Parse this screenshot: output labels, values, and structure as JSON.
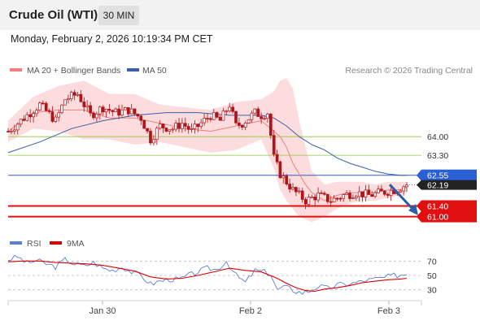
{
  "header": {
    "title": "Crude Oil (WTI)",
    "timeframe": "30 MIN",
    "datetime": "Monday, February 2, 2026 10:19:34 PM CET"
  },
  "attribution": "Research © 2026 Trading Central",
  "colors": {
    "ma20": "#f08080",
    "bollinger_fill": "#fcd6d6",
    "ma50": "#3a5fa8",
    "support_resistance_green": "#8ec63f",
    "pivot_blue": "#2a5fd6",
    "support_red": "#e01010",
    "candle": "#b0141a",
    "rsi": "#5a7fd6",
    "rsi_ma": "#e00000"
  },
  "chart_data": [
    {
      "type": "candlestick",
      "instrument": "Crude Oil (WTI)",
      "interval": "30 MIN",
      "legend": [
        {
          "label": "MA 20 + Bollinger Bands",
          "color": "#f08080"
        },
        {
          "label": "MA 50",
          "color": "#3a5fa8"
        }
      ],
      "x_ticks": [
        "Jan 30",
        "Feb 2",
        "Feb 3"
      ],
      "ylim": [
        60.5,
        66.2
      ],
      "levels": [
        {
          "value": 64.0,
          "label": "64.00",
          "style": "green"
        },
        {
          "value": 63.3,
          "label": "63.30",
          "style": "green"
        },
        {
          "value": 62.55,
          "label": "62.55",
          "style": "blue"
        },
        {
          "value": 61.4,
          "label": "61.40",
          "style": "red"
        },
        {
          "value": 61.0,
          "label": "61.00",
          "style": "red"
        }
      ],
      "last_price": {
        "value": 62.19,
        "label": "62.19"
      },
      "forecast_arrow": {
        "from": 62.2,
        "to": 61.05
      },
      "price_path": [
        [
          0,
          64.2
        ],
        [
          6,
          64.8
        ],
        [
          10,
          65.2
        ],
        [
          15,
          64.6
        ],
        [
          18,
          65.4
        ],
        [
          22,
          65.6
        ],
        [
          26,
          64.8
        ],
        [
          30,
          65.1
        ],
        [
          34,
          64.9
        ],
        [
          38,
          65.0
        ],
        [
          42,
          64.7
        ],
        [
          45,
          63.9
        ],
        [
          48,
          64.4
        ],
        [
          52,
          64.3
        ],
        [
          55,
          64.5
        ],
        [
          58,
          64.2
        ],
        [
          61,
          64.5
        ],
        [
          64,
          64.8
        ],
        [
          67,
          64.6
        ],
        [
          70,
          65.2
        ],
        [
          72,
          64.4
        ],
        [
          74,
          64.5
        ],
        [
          76,
          64.7
        ],
        [
          78,
          64.9
        ],
        [
          80,
          64.8
        ],
        [
          82,
          64.9
        ],
        [
          84,
          63.2
        ],
        [
          86,
          62.6
        ],
        [
          90,
          62.0
        ],
        [
          94,
          61.6
        ],
        [
          98,
          61.8
        ],
        [
          102,
          61.6
        ],
        [
          106,
          61.8
        ],
        [
          110,
          61.9
        ],
        [
          114,
          61.8
        ],
        [
          118,
          61.9
        ],
        [
          122,
          62.0
        ],
        [
          126,
          62.2
        ]
      ],
      "bollinger_upper": [
        [
          0,
          64.6
        ],
        [
          8,
          65.5
        ],
        [
          16,
          65.9
        ],
        [
          24,
          66.1
        ],
        [
          32,
          65.6
        ],
        [
          40,
          65.6
        ],
        [
          48,
          65.2
        ],
        [
          56,
          65.1
        ],
        [
          64,
          65.0
        ],
        [
          72,
          65.3
        ],
        [
          80,
          65.4
        ],
        [
          84,
          65.7
        ],
        [
          86,
          66.1
        ],
        [
          88,
          66.2
        ],
        [
          90,
          65.8
        ],
        [
          92,
          64.6
        ],
        [
          94,
          63.6
        ],
        [
          96,
          62.7
        ],
        [
          100,
          62.2
        ],
        [
          104,
          62.3
        ],
        [
          108,
          62.3
        ],
        [
          112,
          62.3
        ],
        [
          116,
          62.2
        ],
        [
          120,
          62.3
        ],
        [
          124,
          62.3
        ],
        [
          126,
          62.3
        ]
      ],
      "bollinger_lower": [
        [
          0,
          63.8
        ],
        [
          8,
          64.3
        ],
        [
          16,
          64.2
        ],
        [
          24,
          63.9
        ],
        [
          32,
          63.9
        ],
        [
          40,
          63.7
        ],
        [
          48,
          63.8
        ],
        [
          56,
          63.6
        ],
        [
          64,
          63.4
        ],
        [
          72,
          63.5
        ],
        [
          80,
          63.9
        ],
        [
          84,
          62.8
        ],
        [
          86,
          62.0
        ],
        [
          88,
          61.6
        ],
        [
          90,
          61.3
        ],
        [
          92,
          61.0
        ],
        [
          94,
          60.9
        ],
        [
          96,
          60.8
        ],
        [
          100,
          61.0
        ],
        [
          104,
          61.3
        ],
        [
          108,
          61.5
        ],
        [
          112,
          61.6
        ],
        [
          116,
          61.6
        ],
        [
          120,
          61.7
        ],
        [
          124,
          61.8
        ],
        [
          126,
          61.9
        ]
      ],
      "ma20": [
        [
          0,
          64.2
        ],
        [
          8,
          64.9
        ],
        [
          16,
          65.0
        ],
        [
          24,
          65.0
        ],
        [
          32,
          64.7
        ],
        [
          40,
          64.7
        ],
        [
          48,
          64.5
        ],
        [
          56,
          64.3
        ],
        [
          64,
          64.2
        ],
        [
          72,
          64.4
        ],
        [
          80,
          64.6
        ],
        [
          84,
          64.2
        ],
        [
          86,
          64.0
        ],
        [
          88,
          63.6
        ],
        [
          90,
          63.0
        ],
        [
          92,
          62.6
        ],
        [
          94,
          62.2
        ],
        [
          96,
          61.9
        ],
        [
          100,
          61.6
        ],
        [
          104,
          61.8
        ],
        [
          108,
          61.9
        ],
        [
          112,
          61.9
        ],
        [
          116,
          61.9
        ],
        [
          120,
          62.0
        ],
        [
          124,
          62.0
        ],
        [
          126,
          62.1
        ]
      ],
      "ma50": [
        [
          0,
          63.4
        ],
        [
          10,
          63.8
        ],
        [
          20,
          64.3
        ],
        [
          30,
          64.6
        ],
        [
          40,
          64.8
        ],
        [
          50,
          64.9
        ],
        [
          60,
          64.9
        ],
        [
          70,
          64.8
        ],
        [
          80,
          64.8
        ],
        [
          84,
          64.7
        ],
        [
          88,
          64.4
        ],
        [
          92,
          64.0
        ],
        [
          96,
          63.7
        ],
        [
          100,
          63.5
        ],
        [
          104,
          63.2
        ],
        [
          108,
          63.0
        ],
        [
          112,
          62.85
        ],
        [
          116,
          62.7
        ],
        [
          120,
          62.6
        ],
        [
          124,
          62.55
        ],
        [
          126,
          62.55
        ]
      ]
    },
    {
      "type": "line",
      "indicator": "RSI",
      "legend": [
        {
          "label": "RSI",
          "color": "#5a7fd6"
        },
        {
          "label": "9MA",
          "color": "#e00000"
        }
      ],
      "y_ticks": [
        70,
        50,
        30
      ],
      "ylim": [
        15,
        85
      ],
      "rsi": [
        [
          0,
          72
        ],
        [
          3,
          76
        ],
        [
          6,
          67
        ],
        [
          9,
          71
        ],
        [
          12,
          66
        ],
        [
          15,
          62
        ],
        [
          18,
          72
        ],
        [
          21,
          66
        ],
        [
          24,
          63
        ],
        [
          27,
          68
        ],
        [
          30,
          60
        ],
        [
          33,
          57
        ],
        [
          36,
          62
        ],
        [
          39,
          55
        ],
        [
          42,
          50
        ],
        [
          45,
          38
        ],
        [
          48,
          42
        ],
        [
          51,
          45
        ],
        [
          54,
          44
        ],
        [
          57,
          50
        ],
        [
          60,
          55
        ],
        [
          63,
          60
        ],
        [
          66,
          58
        ],
        [
          69,
          70
        ],
        [
          72,
          50
        ],
        [
          75,
          40
        ],
        [
          78,
          57
        ],
        [
          81,
          55
        ],
        [
          83,
          52
        ],
        [
          85,
          30
        ],
        [
          87,
          34
        ],
        [
          89,
          32
        ],
        [
          91,
          28
        ],
        [
          93,
          26
        ],
        [
          95,
          28
        ],
        [
          98,
          35
        ],
        [
          101,
          32
        ],
        [
          104,
          37
        ],
        [
          107,
          38
        ],
        [
          110,
          40
        ],
        [
          113,
          43
        ],
        [
          116,
          45
        ],
        [
          119,
          47
        ],
        [
          122,
          50
        ],
        [
          126,
          52
        ]
      ],
      "ma9": [
        [
          0,
          69
        ],
        [
          5,
          70
        ],
        [
          10,
          70
        ],
        [
          15,
          68
        ],
        [
          20,
          67
        ],
        [
          25,
          66
        ],
        [
          30,
          64
        ],
        [
          35,
          60
        ],
        [
          40,
          56
        ],
        [
          45,
          48
        ],
        [
          50,
          45
        ],
        [
          55,
          46
        ],
        [
          60,
          50
        ],
        [
          65,
          55
        ],
        [
          70,
          60
        ],
        [
          75,
          57
        ],
        [
          80,
          55
        ],
        [
          85,
          46
        ],
        [
          88,
          39
        ],
        [
          91,
          33
        ],
        [
          94,
          29
        ],
        [
          97,
          28
        ],
        [
          100,
          31
        ],
        [
          104,
          33
        ],
        [
          108,
          36
        ],
        [
          112,
          40
        ],
        [
          116,
          42
        ],
        [
          120,
          44
        ],
        [
          124,
          45
        ],
        [
          126,
          46
        ]
      ]
    }
  ]
}
